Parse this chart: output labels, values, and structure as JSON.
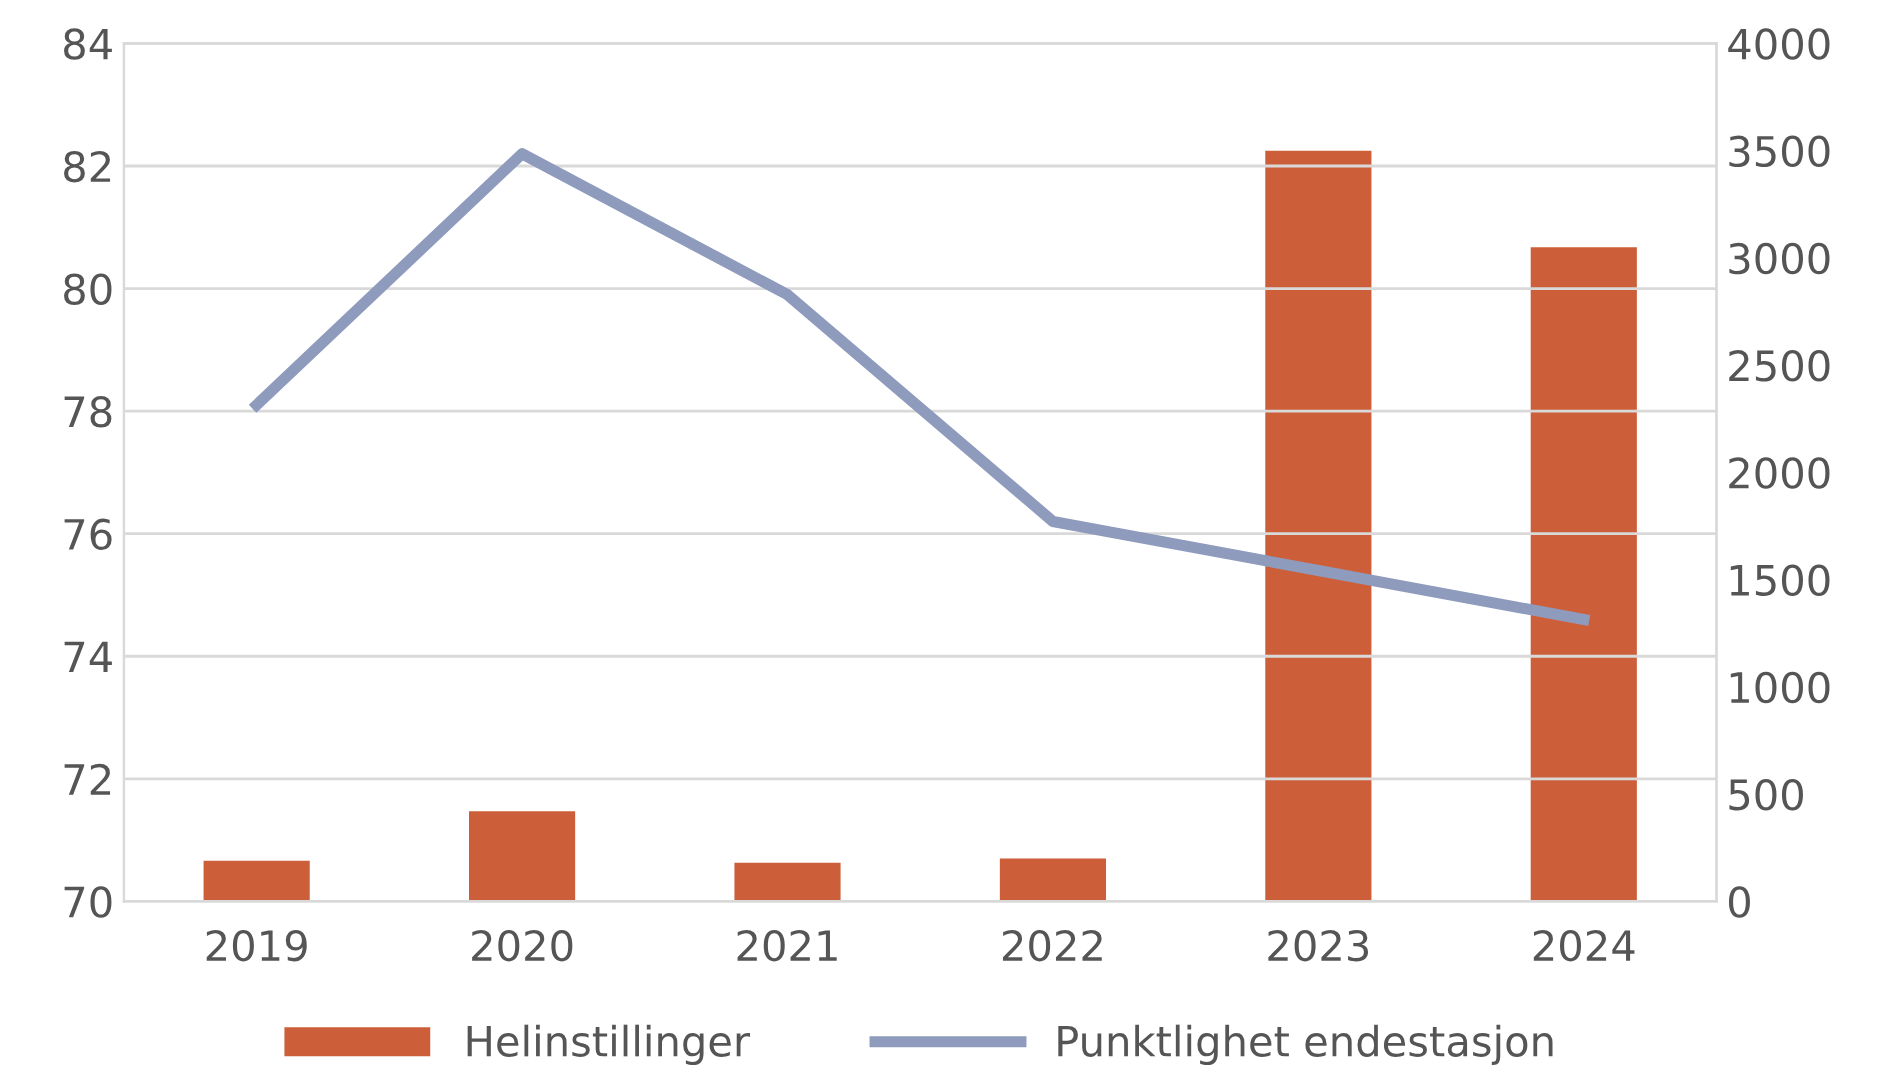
{
  "chart_data": {
    "type": "bar",
    "categories": [
      "2019",
      "2020",
      "2021",
      "2022",
      "2023",
      "2024"
    ],
    "series": [
      {
        "name": "Helinstillinger",
        "axis": "y2",
        "color": "#cc5f3a",
        "values": [
          190,
          420,
          180,
          200,
          3500,
          3050
        ]
      },
      {
        "name": "Punktlighet endestasjon",
        "type": "line",
        "axis": "y",
        "color": "#8e9bbd",
        "values": [
          78.1,
          82.2,
          79.9,
          76.2,
          75.4,
          74.6
        ]
      }
    ],
    "ylim": [
      70,
      84
    ],
    "yticks": [
      70,
      72,
      74,
      76,
      78,
      80,
      82,
      84
    ],
    "y2lim": [
      0,
      4000
    ],
    "y2ticks": [
      0,
      500,
      1000,
      1500,
      2000,
      2500,
      3000,
      3500,
      4000
    ],
    "grid": "y",
    "legend": "bottom",
    "marker": "none",
    "line_style": "solid"
  }
}
